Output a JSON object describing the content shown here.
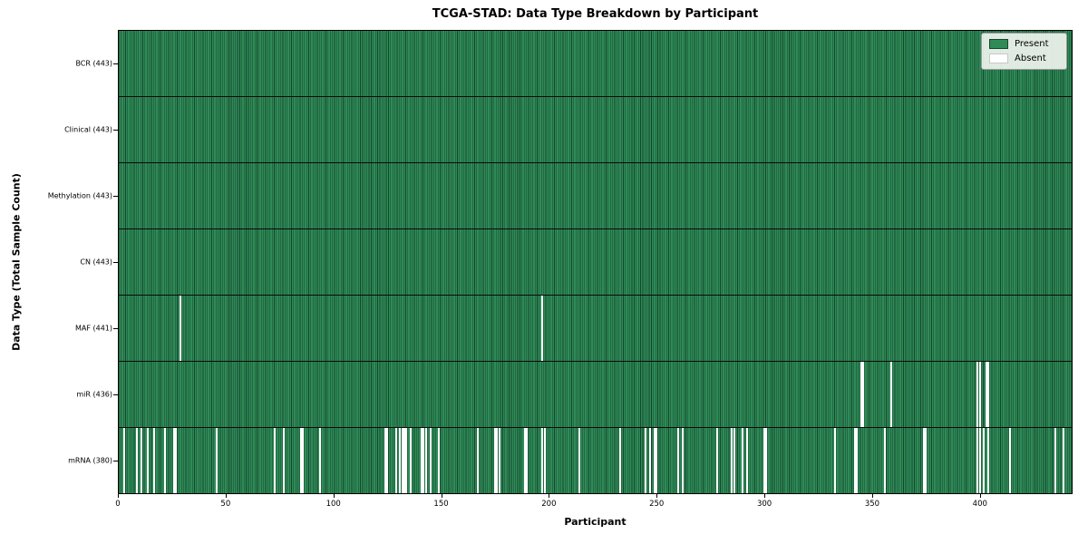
{
  "title": "TCGA-STAD: Data Type Breakdown by Participant",
  "xlabel": "Participant",
  "ylabel": "Data Type (Total Sample Count)",
  "legend": {
    "present_label": "Present",
    "absent_label": "Absent"
  },
  "colors": {
    "present": "#2e8b57",
    "present_edge": "#16452c",
    "absent": "#ffffff",
    "legend_bg": "#f0f4ee",
    "axis": "#000000"
  },
  "chart_data": {
    "type": "heatmap",
    "title": "TCGA-STAD: Data Type Breakdown by Participant",
    "xlabel": "Participant",
    "ylabel": "Data Type (Total Sample Count)",
    "x_ticks": [
      0,
      50,
      100,
      150,
      200,
      250,
      300,
      350,
      400
    ],
    "xlim": [
      0,
      443
    ],
    "n_participants": 443,
    "grid": false,
    "legend_entries": [
      "Present",
      "Absent"
    ],
    "legend_position": "upper right",
    "value_encoding": {
      "present": "green cell",
      "absent": "white cell"
    },
    "rows": [
      {
        "label": "BCR (443)",
        "data_type": "BCR",
        "present_count": 443,
        "absent_participants": []
      },
      {
        "label": "Clinical (443)",
        "data_type": "Clinical",
        "present_count": 443,
        "absent_participants": []
      },
      {
        "label": "Methylation (443)",
        "data_type": "Methylation",
        "present_count": 443,
        "absent_participants": []
      },
      {
        "label": "CN (443)",
        "data_type": "CN",
        "present_count": 443,
        "absent_participants": []
      },
      {
        "label": "MAF (441)",
        "data_type": "MAF",
        "present_count": 441,
        "absent_participants": [
          28,
          196
        ]
      },
      {
        "label": "miR (436)",
        "data_type": "miR",
        "present_count": 436,
        "absent_participants": [
          344,
          345,
          358,
          398,
          399,
          402,
          403
        ]
      },
      {
        "label": "mRNA (380)",
        "data_type": "mRNA",
        "present_count": 380,
        "absent_participants": [
          2,
          8,
          10,
          13,
          16,
          21,
          25,
          26,
          45,
          72,
          76,
          84,
          85,
          93,
          123,
          124,
          128,
          130,
          131,
          132,
          133,
          135,
          140,
          141,
          142,
          144,
          148,
          166,
          174,
          175,
          176,
          188,
          189,
          196,
          197,
          213,
          232,
          244,
          246,
          248,
          249,
          259,
          261,
          277,
          284,
          285,
          289,
          291,
          299,
          300,
          332,
          341,
          342,
          355,
          373,
          374,
          398,
          399,
          401,
          403,
          413,
          434,
          438
        ]
      }
    ]
  }
}
